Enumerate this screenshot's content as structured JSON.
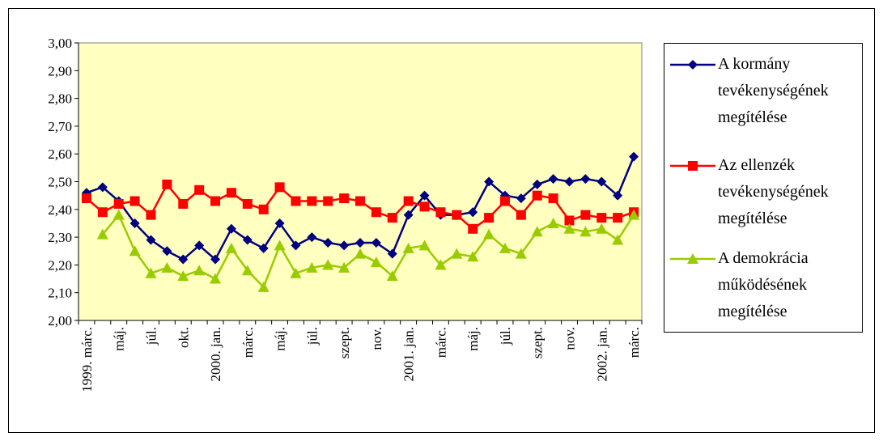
{
  "chart_data": {
    "type": "line",
    "categories": [
      "1999. márc.",
      null,
      "máj.",
      null,
      "júl.",
      null,
      "okt.",
      null,
      "2000. jan.",
      null,
      "márc.",
      null,
      "máj.",
      null,
      "júl.",
      null,
      "szept.",
      null,
      "nov.",
      null,
      "2001. jan.",
      null,
      "márc.",
      null,
      "máj.",
      null,
      "júl.",
      null,
      "szept.",
      null,
      "nov.",
      null,
      "2002. jan.",
      null,
      "márc."
    ],
    "series": [
      {
        "name": "A kormány tevékenységének megítélése",
        "color": "#000080",
        "marker": "diamond",
        "values": [
          2.46,
          2.48,
          2.43,
          2.35,
          2.29,
          2.25,
          2.22,
          2.27,
          2.22,
          2.33,
          2.29,
          2.26,
          2.35,
          2.27,
          2.3,
          2.28,
          2.27,
          2.28,
          2.28,
          2.24,
          2.38,
          2.45,
          2.38,
          2.38,
          2.39,
          2.5,
          2.45,
          2.44,
          2.49,
          2.51,
          2.5,
          2.51,
          2.5,
          2.45,
          2.59
        ]
      },
      {
        "name": "Az ellenzék tevékenységének megítélése",
        "color": "#FF0000",
        "marker": "square",
        "values": [
          2.44,
          2.39,
          2.42,
          2.43,
          2.38,
          2.49,
          2.42,
          2.47,
          2.43,
          2.46,
          2.42,
          2.4,
          2.48,
          2.43,
          2.43,
          2.43,
          2.44,
          2.43,
          2.39,
          2.37,
          2.43,
          2.41,
          2.39,
          2.38,
          2.33,
          2.37,
          2.43,
          2.38,
          2.45,
          2.44,
          2.36,
          2.38,
          2.37,
          2.37,
          2.39
        ]
      },
      {
        "name": "A demokrácia működésének megítélése",
        "color": "#99CC00",
        "marker": "triangle",
        "values": [
          null,
          2.31,
          2.38,
          2.25,
          2.17,
          2.19,
          2.16,
          2.18,
          2.15,
          2.26,
          2.18,
          2.12,
          2.27,
          2.17,
          2.19,
          2.2,
          2.19,
          2.24,
          2.21,
          2.16,
          2.26,
          2.27,
          2.2,
          2.24,
          2.23,
          2.31,
          2.26,
          2.24,
          2.32,
          2.35,
          2.33,
          2.32,
          2.33,
          2.29,
          2.38
        ]
      }
    ],
    "ylim": [
      2.0,
      3.0
    ],
    "yticks": [
      {
        "value": 2.0,
        "label": "2,00"
      },
      {
        "value": 2.1,
        "label": "2,10"
      },
      {
        "value": 2.2,
        "label": "2,20"
      },
      {
        "value": 2.3,
        "label": "2,30"
      },
      {
        "value": 2.4,
        "label": "2,40"
      },
      {
        "value": 2.5,
        "label": "2,50"
      },
      {
        "value": 2.6,
        "label": "2,60"
      },
      {
        "value": 2.7,
        "label": "2,70"
      },
      {
        "value": 2.8,
        "label": "2,80"
      },
      {
        "value": 2.9,
        "label": "2,90"
      },
      {
        "value": 3.0,
        "label": "3,00"
      }
    ],
    "grid": false,
    "plot_background": "#FFFFC0",
    "legend": "right"
  }
}
